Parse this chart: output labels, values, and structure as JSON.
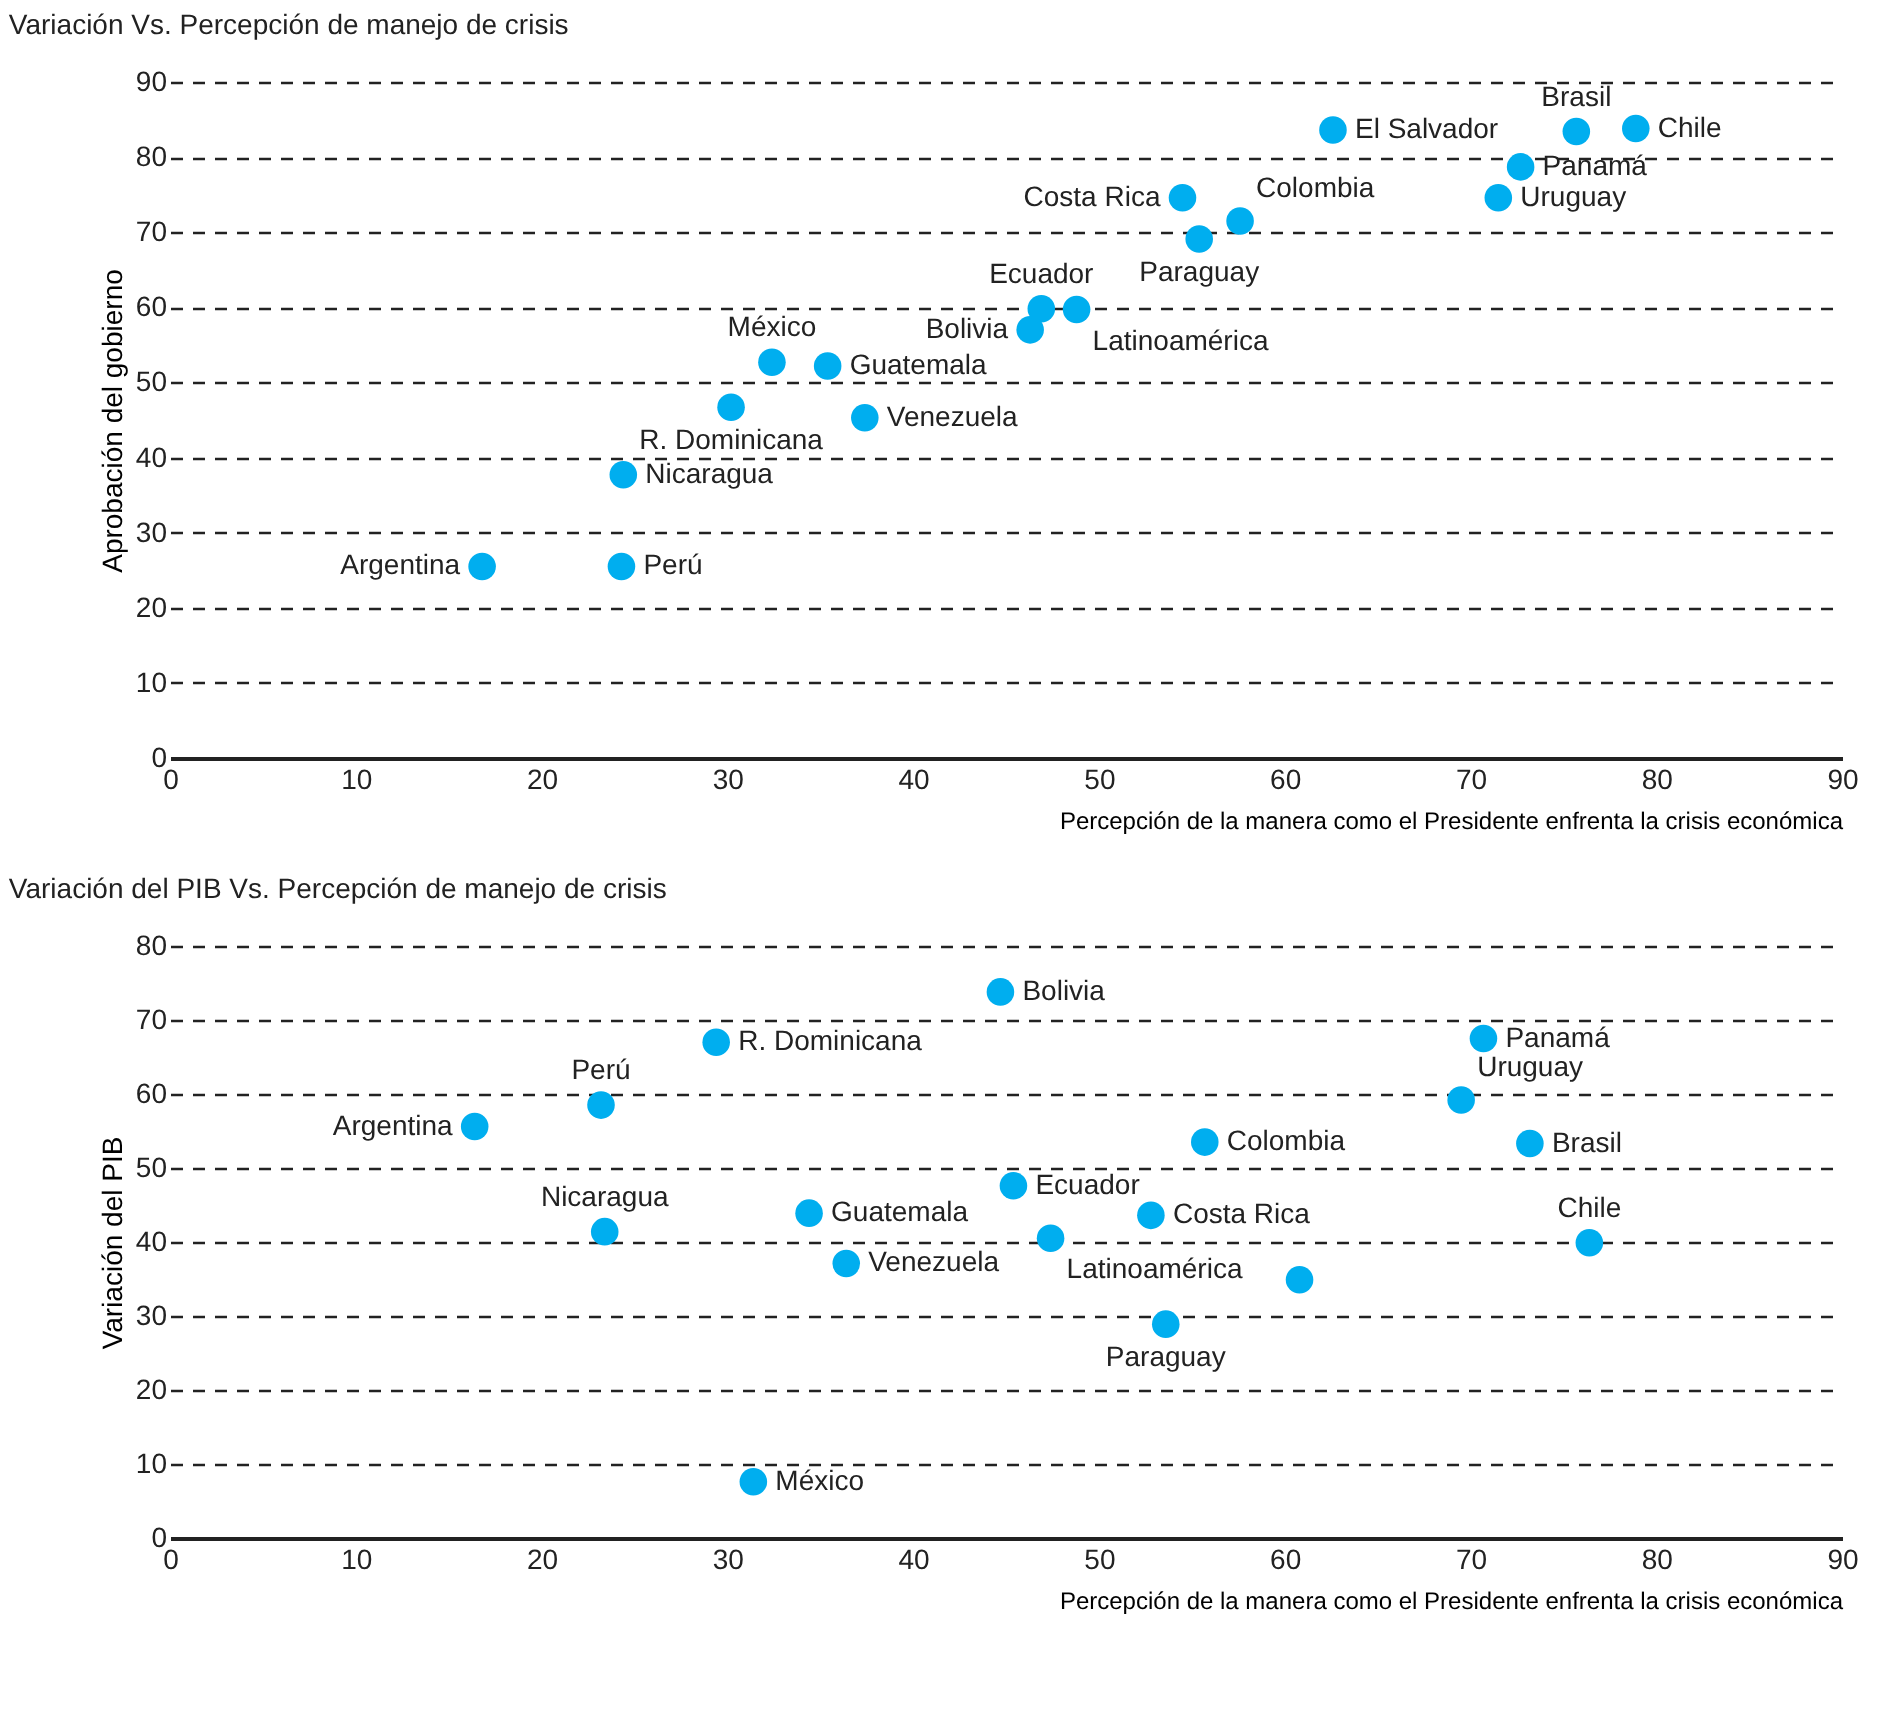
{
  "chart_data": [
    {
      "type": "scatter",
      "title": "Variación Vs. Percepción de manejo de crisis",
      "xlabel": "Percepción de la manera como el Presidente enfrenta la crisis económica",
      "ylabel": "Aprobación del gobierno",
      "x": [
        16.8,
        24.3,
        24.4,
        30.2,
        32.4,
        35.4,
        37.4,
        46.3,
        46.9,
        48.8,
        54.5,
        55.4,
        57.6,
        62.6,
        71.5,
        72.7,
        75.7,
        78.9
      ],
      "series": [
        {
          "color": "#00aeef",
          "values": [
            25.5,
            25.5,
            37.7,
            46.7,
            52.7,
            52.2,
            45.3,
            57.0,
            59.8,
            59.7,
            74.6,
            69.1,
            71.5,
            83.6,
            74.6,
            78.7,
            83.4,
            83.8
          ]
        }
      ],
      "annotations": [
        {
          "text": "Argentina",
          "x": 16.8,
          "y": 25.5
        },
        {
          "text": "Perú",
          "x": 24.3,
          "y": 25.5
        },
        {
          "text": "Nicaragua",
          "x": 24.4,
          "y": 37.7
        },
        {
          "text": "R. Dominicana",
          "x": 30.2,
          "y": 46.7
        },
        {
          "text": "México",
          "x": 32.4,
          "y": 52.7
        },
        {
          "text": "Guatemala",
          "x": 35.4,
          "y": 52.2
        },
        {
          "text": "Venezuela",
          "x": 37.4,
          "y": 45.3
        },
        {
          "text": "Bolivia",
          "x": 46.3,
          "y": 57.0
        },
        {
          "text": "Ecuador",
          "x": 46.9,
          "y": 59.8
        },
        {
          "text": "Latinoamérica",
          "x": 48.8,
          "y": 59.7
        },
        {
          "text": "Costa Rica",
          "x": 54.5,
          "y": 74.6
        },
        {
          "text": "Paraguay",
          "x": 55.4,
          "y": 69.1
        },
        {
          "text": "Colombia",
          "x": 57.6,
          "y": 71.5
        },
        {
          "text": "El Salvador",
          "x": 62.6,
          "y": 83.6
        },
        {
          "text": "Uruguay",
          "x": 71.5,
          "y": 74.6
        },
        {
          "text": "Panamá",
          "x": 72.7,
          "y": 78.7
        },
        {
          "text": "Brasil",
          "x": 75.7,
          "y": 83.4
        },
        {
          "text": "Chile",
          "x": 78.9,
          "y": 83.8
        }
      ],
      "xlim": [
        0,
        90
      ],
      "xticks": [
        0,
        10,
        20,
        30,
        40,
        50,
        60,
        70,
        80,
        90
      ],
      "ylim": [
        0,
        90
      ],
      "yticks": [
        0,
        10,
        20,
        30,
        40,
        50,
        60,
        70,
        80,
        90
      ],
      "grid": "y",
      "marker": "circle"
    },
    {
      "type": "scatter",
      "title": "Variación del PIB Vs. Percepción de manejo de crisis",
      "xlabel": "Percepción de la manera como el Presidente enfrenta la crisis económica",
      "ylabel": "Variación del PIB",
      "x": [
        16.4,
        23.2,
        23.4,
        29.4,
        31.4,
        34.4,
        36.4,
        44.7,
        45.4,
        47.4,
        52.8,
        53.6,
        55.7,
        60.8,
        69.5,
        70.7,
        73.2,
        76.4
      ],
      "series": [
        {
          "color": "#00aeef",
          "values": [
            55.6,
            58.5,
            41.4,
            67.0,
            7.6,
            43.9,
            37.1,
            73.8,
            47.6,
            40.5,
            43.6,
            28.9,
            53.5,
            34.9,
            59.2,
            67.5,
            53.3,
            39.9
          ]
        }
      ],
      "annotations": [
        {
          "text": "Argentina",
          "x": 16.4,
          "y": 55.6
        },
        {
          "text": "Perú",
          "x": 23.2,
          "y": 58.5
        },
        {
          "text": "Nicaragua",
          "x": 23.4,
          "y": 41.4
        },
        {
          "text": "R. Dominicana",
          "x": 29.4,
          "y": 67.0
        },
        {
          "text": "México",
          "x": 31.4,
          "y": 7.6
        },
        {
          "text": "Guatemala",
          "x": 34.4,
          "y": 43.9
        },
        {
          "text": "Venezuela",
          "x": 36.4,
          "y": 37.1
        },
        {
          "text": "Bolivia",
          "x": 44.7,
          "y": 73.8
        },
        {
          "text": "Ecuador",
          "x": 45.4,
          "y": 47.6
        },
        {
          "text": "Latinoamérica",
          "x": 47.4,
          "y": 40.5
        },
        {
          "text": "Costa Rica",
          "x": 52.8,
          "y": 43.6
        },
        {
          "text": "Paraguay",
          "x": 53.6,
          "y": 28.9
        },
        {
          "text": "Colombia",
          "x": 55.7,
          "y": 53.5
        },
        {
          "text": "Uruguay",
          "x": 69.5,
          "y": 59.2
        },
        {
          "text": "Panamá",
          "x": 70.7,
          "y": 67.5
        },
        {
          "text": "Brasil",
          "x": 73.2,
          "y": 53.3
        },
        {
          "text": "Chile",
          "x": 76.4,
          "y": 39.9
        }
      ],
      "xlim": [
        0,
        90
      ],
      "xticks": [
        0,
        10,
        20,
        30,
        40,
        50,
        60,
        70,
        80,
        90
      ],
      "ylim": [
        0,
        80
      ],
      "yticks": [
        0,
        10,
        20,
        30,
        40,
        50,
        60,
        70,
        80
      ],
      "grid": "y",
      "marker": "circle"
    }
  ]
}
